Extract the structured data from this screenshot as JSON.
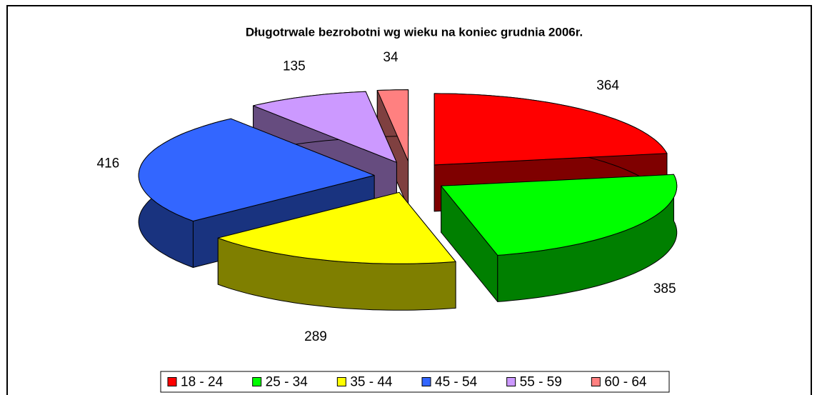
{
  "chart_data": {
    "type": "pie3d",
    "title": "Długotrwale bezrobotni wg wieku na koniec grudnia 2006r.",
    "categories": [
      "18 - 24",
      "25 - 34",
      "35 - 44",
      "45 - 54",
      "55 - 59",
      "60 - 64"
    ],
    "values": [
      364,
      385,
      289,
      416,
      135,
      34
    ],
    "colors": [
      "#ff0000",
      "#00ff00",
      "#ffff00",
      "#3366ff",
      "#cc99ff",
      "#ff8080"
    ],
    "legend": "bottom"
  }
}
